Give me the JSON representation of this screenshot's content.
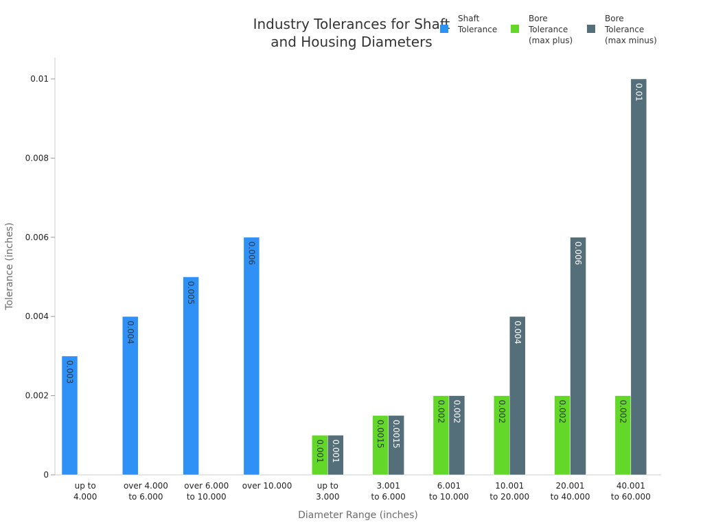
{
  "chart_data": {
    "type": "bar",
    "title": [
      "Industry Tolerances for Shaft",
      "and Housing Diameters"
    ],
    "xlabel": "Diameter Range (inches)",
    "ylabel": "Tolerance (inches)",
    "ylim": [
      0,
      0.0105
    ],
    "yticks": [
      {
        "value": 0,
        "label": "0"
      },
      {
        "value": 0.002,
        "label": "0.002"
      },
      {
        "value": 0.004,
        "label": "0.004"
      },
      {
        "value": 0.006,
        "label": "0.006"
      },
      {
        "value": 0.008,
        "label": "0.008"
      },
      {
        "value": 0.01,
        "label": "0.01"
      }
    ],
    "categories": [
      [
        "up to",
        "4.000"
      ],
      [
        "over 4.000",
        "to 6.000"
      ],
      [
        "over 6.000",
        "to 10.000"
      ],
      [
        "over 10.000"
      ],
      [
        "up to",
        "3.000"
      ],
      [
        "3.001",
        "to 6.000"
      ],
      [
        "6.001",
        "to 10.000"
      ],
      [
        "10.001",
        "to 20.000"
      ],
      [
        "20.001",
        "to 40.000"
      ],
      [
        "40.001",
        "to 60.000"
      ]
    ],
    "series": [
      {
        "name": [
          "Shaft",
          "Tolerance"
        ],
        "color": "#2f90f5",
        "label_color": "#2a3a4a",
        "values": [
          0.003,
          0.004,
          0.005,
          0.006,
          null,
          null,
          null,
          null,
          null,
          null
        ],
        "labels": [
          "0.003",
          "0.004",
          "0.005",
          "0.006",
          null,
          null,
          null,
          null,
          null,
          null
        ]
      },
      {
        "name": [
          "Bore",
          "Tolerance",
          "(max plus)"
        ],
        "color": "#64d829",
        "label_color": "#2a3a2a",
        "values": [
          null,
          null,
          null,
          null,
          0.001,
          0.0015,
          0.002,
          0.002,
          0.002,
          0.002
        ],
        "labels": [
          null,
          null,
          null,
          null,
          "0.001",
          "0.0015",
          "0.002",
          "0.002",
          "0.002",
          "0.002"
        ]
      },
      {
        "name": [
          "Bore",
          "Tolerance",
          "(max minus)"
        ],
        "color": "#546e7a",
        "label_color": "#ffffff",
        "values": [
          null,
          null,
          null,
          null,
          0.001,
          0.0015,
          0.002,
          0.004,
          0.006,
          0.01
        ],
        "labels": [
          null,
          null,
          null,
          null,
          "0.001",
          "0.0015",
          "0.002",
          "0.004",
          "0.006",
          "0.01"
        ]
      }
    ],
    "legend_position": "top-right",
    "grid": false
  }
}
